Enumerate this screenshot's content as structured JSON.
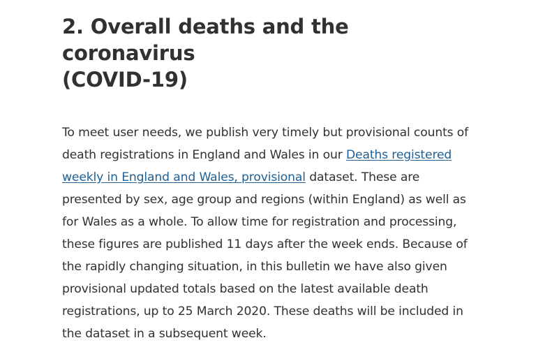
{
  "section": {
    "number": "2.",
    "title_line1": "Overall deaths and the coronavirus",
    "title_line2": "(COVID-19)"
  },
  "paragraph": {
    "before_link": "To meet user needs, we publish very timely but provisional counts of death registrations in England and Wales in our ",
    "link_text": "Deaths registered weekly in England and Wales, provisional",
    "after_link": " dataset. These are presented by sex, age group and regions (within England) as well as for Wales as a whole. To allow time for registration and processing, these figures are published 11 days after the week ends. Because of the rapidly changing situation, in this bulletin we have also given provisional updated totals based on the latest available death registrations, up to 25 March 2020. These deaths will be included in the dataset in a subsequent week."
  },
  "colors": {
    "text": "#323132",
    "link": "#206095",
    "background": "#ffffff"
  }
}
